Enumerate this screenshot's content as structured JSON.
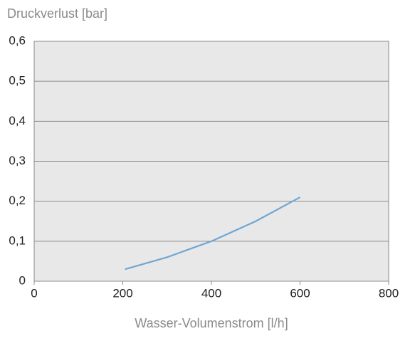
{
  "chart_data": {
    "type": "line",
    "title": "Druckverlust [bar]",
    "x_label": "Wasser-Volumenstrom [l/h]",
    "x": [
      205,
      300,
      400,
      500,
      600
    ],
    "series": [
      {
        "color": "#6fa6d2",
        "values": [
          0.03,
          0.06,
          0.1,
          0.15,
          0.21
        ]
      }
    ],
    "xlim": [
      0,
      800
    ],
    "xticks": [
      0,
      200,
      400,
      600,
      800
    ],
    "ylim": [
      0,
      0.6
    ],
    "yticks": [
      0,
      {
        "value": 0.1,
        "label": "0,1"
      },
      {
        "value": 0.2,
        "label": "0,2"
      },
      {
        "value": 0.3,
        "label": "0,3"
      },
      {
        "value": 0.4,
        "label": "0,4"
      },
      {
        "value": 0.5,
        "label": "0,5"
      },
      {
        "value": 0.6,
        "label": "0,6"
      }
    ],
    "grid": true
  }
}
